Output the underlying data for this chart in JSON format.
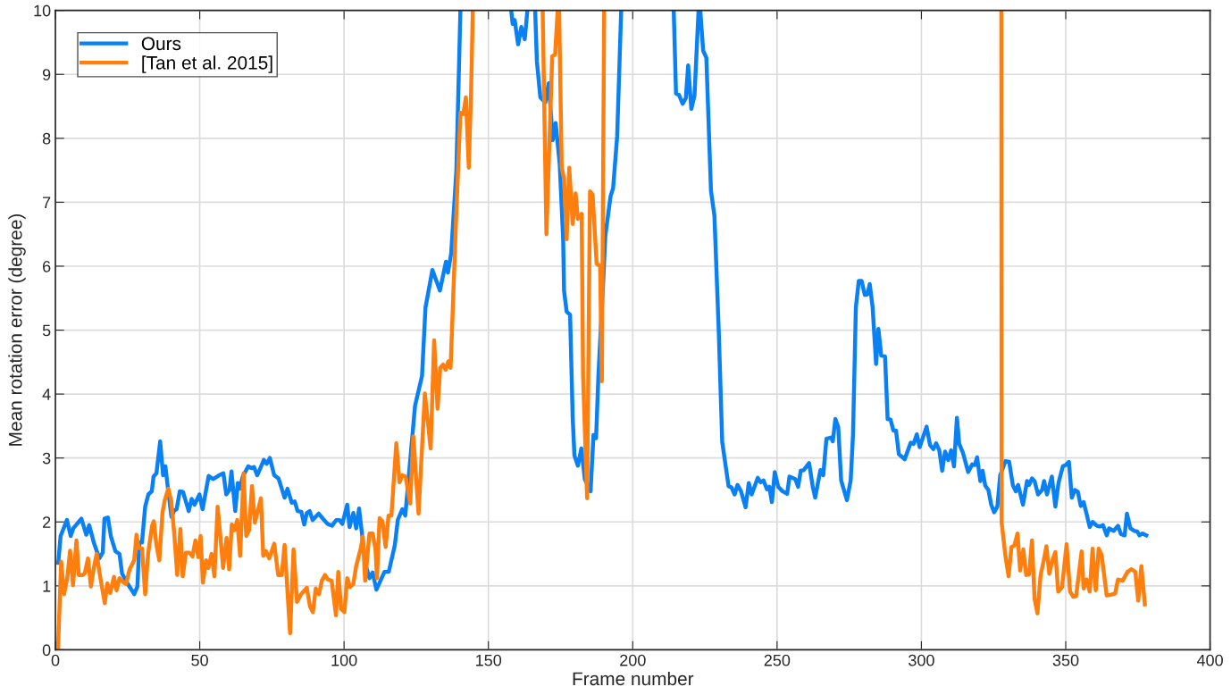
{
  "chart_data": {
    "type": "line",
    "xlabel": "Frame number",
    "ylabel": "Mean rotation error (degree)",
    "xlim": [
      0,
      400
    ],
    "xticks": [
      0,
      50,
      100,
      150,
      200,
      250,
      300,
      350,
      400
    ],
    "ylim": [
      0,
      10
    ],
    "yticks": [
      0,
      1,
      2,
      3,
      4,
      5,
      6,
      7,
      8,
      9,
      10
    ],
    "grid": true,
    "legend": "top left",
    "marker": "none",
    "line_style": "solid",
    "series": [
      {
        "name": "Ours",
        "color": "#0a80f5",
        "x": [
          1,
          1.8,
          4,
          5.3,
          6.2,
          9,
          10.7,
          11.7,
          13.3,
          15.2,
          16.4,
          17,
          18.2,
          19.2,
          20.8,
          22.2,
          23.1,
          25.1,
          27.3,
          28.4,
          29.1,
          30,
          31.1,
          32.2,
          33.4,
          34,
          35,
          36.3,
          37.3,
          38.1,
          39,
          40.2,
          41.2,
          42,
          43.1,
          44.2,
          46.2,
          47.2,
          48.2,
          49.9,
          51,
          53.1,
          54.6,
          56.7,
          58.2,
          59.2,
          60.3,
          61,
          62.3,
          63.2,
          63.9,
          64.9,
          66.8,
          68,
          68.8,
          69.9,
          71.1,
          72.2,
          73.2,
          74.3,
          75.8,
          77.3,
          79.4,
          80.4,
          81.9,
          82.9,
          83.9,
          85.2,
          86.2,
          87.1,
          88.1,
          89.1,
          91.2,
          92.7,
          94.3,
          95.8,
          97.3,
          98.4,
          99.4,
          101.1,
          101.9,
          103.2,
          104.2,
          105.2,
          106.3,
          107.3,
          108.8,
          109.9,
          111.2,
          112.5,
          114,
          115.5,
          117.6,
          118.6,
          120.2,
          121.2,
          124.6,
          127,
          128.2,
          130.6,
          133.2,
          135.3,
          136,
          137.1,
          138.9,
          140.3,
          150,
          157.9,
          158.4,
          159.1,
          160.3,
          161.4,
          162.6,
          163.5,
          165,
          166.2,
          166.8,
          168,
          169.7,
          170.9,
          172.3,
          173.3,
          174.7,
          175.9,
          176.2,
          177.1,
          178.3,
          179.2,
          179.8,
          181,
          182.2,
          183.4,
          185.4,
          186.4,
          187.3,
          188.1,
          189.9,
          190.5,
          192.3,
          193.2,
          194.6,
          196,
          205,
          214.2,
          215,
          216,
          217.3,
          218.4,
          219.2,
          220.3,
          221.4,
          222.8,
          223.4,
          224.4,
          225.5,
          227.1,
          228.3,
          229.8,
          231,
          233.2,
          234.2,
          235.3,
          236.3,
          237.5,
          239.1,
          240.2,
          241.2,
          243.3,
          244.3,
          245.3,
          246.5,
          247.3,
          248.2,
          249.2,
          250.4,
          251.9,
          253.5,
          254.3,
          256.3,
          257.3,
          258.2,
          259.2,
          261.1,
          262.4,
          263.2,
          265,
          266,
          267.1,
          268.7,
          269.3,
          270.2,
          271.2,
          272.2,
          274.2,
          275.5,
          276.3,
          277.3,
          278.3,
          279.3,
          280.4,
          281.3,
          282.1,
          283.1,
          284.3,
          285.1,
          286.1,
          287.4,
          288.3,
          289.3,
          290.3,
          291.2,
          292.2,
          294.2,
          296.3,
          297.3,
          298.4,
          299.4,
          301.8,
          303,
          304.1,
          305.1,
          306.2,
          307.2,
          308.2,
          309.3,
          310.3,
          311.3,
          312.3,
          313.1,
          314.4,
          316.2,
          317.6,
          318.5,
          319.3,
          320.4,
          321.2,
          322.1,
          323.2,
          324.2,
          325.2,
          326.3,
          327.3,
          329.1,
          330.4,
          331.7,
          332.7,
          333.5,
          335.2,
          336.6,
          337.3,
          338.3,
          339.2,
          340.4,
          341.8,
          342.5,
          343.5,
          345.2,
          346.4,
          347.5,
          349,
          350,
          351.1,
          352.1,
          353.2,
          354.2,
          355.2,
          356.2,
          357.2,
          358.3,
          359.3,
          360.8,
          361.9,
          362.9,
          364.2,
          365,
          366.6,
          368.1,
          369.1,
          370.4,
          371.2,
          372.4,
          373.8,
          374.8,
          375.5,
          376.6,
          377.9
        ],
        "values": [
          1.36,
          1.78,
          2.03,
          1.78,
          1.9,
          2.05,
          1.8,
          1.95,
          1.68,
          1.43,
          1.52,
          2.05,
          2.07,
          1.78,
          1.54,
          1.5,
          1.19,
          1.03,
          0.87,
          0.99,
          1.68,
          1.68,
          2.24,
          2.43,
          2.48,
          2.71,
          2.76,
          3.26,
          2.73,
          2.87,
          2.52,
          2.08,
          2.18,
          2.2,
          2.48,
          2.47,
          2.17,
          2.36,
          2.27,
          2.43,
          2.2,
          2.72,
          2.67,
          2.73,
          2.76,
          2.43,
          2.5,
          2.79,
          2.17,
          2.61,
          2.52,
          2.71,
          2.87,
          2.84,
          2.86,
          2.73,
          2.85,
          2.97,
          2.91,
          3.0,
          2.73,
          2.68,
          2.38,
          2.52,
          2.3,
          2.32,
          2.17,
          2.16,
          1.96,
          2.14,
          2.17,
          2.03,
          2.13,
          2.05,
          1.97,
          1.94,
          2.03,
          2.03,
          1.97,
          2.27,
          1.92,
          2.14,
          1.9,
          2.21,
          1.78,
          1.36,
          1.12,
          1.21,
          0.94,
          1.07,
          1.22,
          1.22,
          1.64,
          2.03,
          2.2,
          2.1,
          3.82,
          4.28,
          5.35,
          5.94,
          5.62,
          6.07,
          5.9,
          6.2,
          7.49,
          10,
          null,
          10,
          9.79,
          9.85,
          9.47,
          9.74,
          9.55,
          10,
          null,
          10,
          9.2,
          8.64,
          8.56,
          8.86,
          7.97,
          8.24,
          7.6,
          6.42,
          5.62,
          5.29,
          5.24,
          3.63,
          3.04,
          2.88,
          3.15,
          2.67,
          2.48,
          3.36,
          3.31,
          4.28,
          5.88,
          6.47,
          7.09,
          7.22,
          8.03,
          10,
          null,
          10,
          8.7,
          8.68,
          8.54,
          8.63,
          9.14,
          8.46,
          8.67,
          10,
          10,
          9.37,
          9.26,
          7.18,
          6.79,
          4.98,
          3.25,
          2.56,
          2.54,
          2.43,
          2.58,
          2.48,
          2.23,
          2.61,
          2.43,
          2.69,
          2.62,
          2.65,
          2.51,
          2.55,
          2.31,
          2.78,
          2.55,
          2.48,
          2.44,
          2.71,
          2.67,
          2.55,
          2.8,
          2.81,
          2.92,
          2.54,
          2.38,
          2.81,
          2.73,
          3.3,
          3.32,
          3.26,
          3.61,
          3.48,
          2.65,
          2.34,
          2.65,
          3.36,
          5.36,
          5.77,
          5.77,
          5.55,
          5.56,
          5.72,
          5.36,
          4.47,
          5.02,
          4.6,
          4.59,
          3.61,
          3.6,
          3.43,
          3.43,
          3.06,
          2.98,
          3.24,
          3.22,
          3.37,
          3.17,
          3.49,
          3.2,
          3.14,
          3.23,
          3.12,
          2.8,
          3.1,
          2.97,
          3.12,
          2.87,
          3.63,
          3.22,
          3.08,
          2.78,
          2.9,
          2.89,
          3.01,
          2.64,
          2.8,
          2.57,
          2.5,
          2.27,
          2.15,
          2.24,
          2.73,
          2.95,
          2.94,
          2.57,
          2.48,
          2.58,
          2.27,
          2.64,
          2.58,
          2.68,
          2.64,
          2.43,
          2.5,
          2.64,
          2.43,
          2.71,
          2.24,
          2.61,
          2.87,
          2.89,
          2.94,
          2.38,
          2.5,
          2.47,
          2.25,
          2.31,
          2.13,
          1.92,
          2.0,
          1.94,
          1.93,
          1.95,
          1.79,
          1.9,
          1.86,
          1.94,
          1.81,
          1.79,
          2.13,
          1.9,
          1.86,
          1.85,
          1.79,
          1.82,
          1.79
        ]
      },
      {
        "name": "[Tan et al. 2015]",
        "color": "#ff7f0e",
        "x": [
          0.9,
          2,
          3,
          4.1,
          5.1,
          6.1,
          7.3,
          8.1,
          9.4,
          10.2,
          11.3,
          12.3,
          13.3,
          14.3,
          15.6,
          17.1,
          18,
          19,
          20.3,
          21.2,
          22.2,
          23.7,
          24.5,
          25.7,
          27.3,
          28.1,
          28.8,
          30,
          31.1,
          32.1,
          33.5,
          34.1,
          35,
          36,
          37.1,
          37.9,
          39.1,
          40.1,
          41.2,
          42.2,
          43.3,
          44.1,
          45.2,
          46.4,
          47.5,
          48.5,
          49.5,
          50.3,
          51.1,
          52.2,
          53,
          54.1,
          55.1,
          56.2,
          57.1,
          58.1,
          59.3,
          60.2,
          61.1,
          62,
          63,
          64,
          65.2,
          66.1,
          67.1,
          68.1,
          69.1,
          70,
          71.2,
          72,
          73,
          74.1,
          75.8,
          77.2,
          78.4,
          79.4,
          81.3,
          82.5,
          83.7,
          85.1,
          87.1,
          88.2,
          89.2,
          90.2,
          91.3,
          92.3,
          93.4,
          94.4,
          95.7,
          97.2,
          98,
          99,
          100.1,
          101.1,
          102.1,
          103.2,
          104.2,
          105.8,
          106.5,
          107.3,
          108.8,
          109.9,
          110.9,
          111.4,
          112.3,
          113.3,
          114.4,
          115.4,
          116.4,
          118.1,
          119.2,
          120.2,
          121.3,
          122.9,
          124,
          125.8,
          128,
          130,
          131.2,
          132.4,
          133.3,
          134.3,
          135.2,
          136.1,
          136.9,
          138.9,
          140.3,
          141.3,
          142.2,
          143.2,
          144,
          144.6,
          155,
          168.8,
          170.1,
          172.1,
          173.1,
          174,
          174.5,
          175.4,
          176.2,
          177.1,
          178,
          179.2,
          180.2,
          181,
          182.3,
          182.8,
          184.2,
          185.2,
          186.1,
          187.5,
          188.7,
          189.3,
          190.1,
          250,
          327.7,
          327.8,
          329.1,
          330.2,
          331.2,
          332.2,
          333.3,
          334.2,
          335.3,
          336.3,
          337.3,
          338.3,
          339.2,
          340.2,
          341.3,
          342.3,
          343.3,
          344.3,
          345.4,
          346.4,
          347.4,
          348.7,
          350.3,
          351.5,
          352.6,
          353.6,
          355.5,
          356.2,
          357.2,
          358.3,
          359.3,
          360.4,
          361.4,
          362.4,
          364.2,
          365.5,
          367.1,
          368.1,
          369.7,
          371.4,
          372.8,
          374.1,
          375.1,
          376.2,
          377.4
        ],
        "values": [
          0,
          1.38,
          0.87,
          1.12,
          1.55,
          1.01,
          1.71,
          1.17,
          1.17,
          1.2,
          1.43,
          0.99,
          1.28,
          1.5,
          1.12,
          0.73,
          1.04,
          0.89,
          1.14,
          0.93,
          1.12,
          1.05,
          1.03,
          1.26,
          1.4,
          1.8,
          1.59,
          1.59,
          0.87,
          1.5,
          1.94,
          2.01,
          1.64,
          1.4,
          2.15,
          2.34,
          2.52,
          2.34,
          1.8,
          1.17,
          1.89,
          1.15,
          1.52,
          1.52,
          1.46,
          1.71,
          1.45,
          1.78,
          1.05,
          1.4,
          1.28,
          1.5,
          1.15,
          2.24,
          1.8,
          1.28,
          1.75,
          1.26,
          1.96,
          1.87,
          2.03,
          1.47,
          2.76,
          1.78,
          1.87,
          2.56,
          1.99,
          2.15,
          2.37,
          1.47,
          1.54,
          1.43,
          1.66,
          1.17,
          1.17,
          1.64,
          0.26,
          1.57,
          0.75,
          0.87,
          0.97,
          0.68,
          0.59,
          0.96,
          0.87,
          1.08,
          1.17,
          1.1,
          1.08,
          0.54,
          1.22,
          0.64,
          0.59,
          1.12,
          0.98,
          1.03,
          1.31,
          1.59,
          1.77,
          1.08,
          1.82,
          1.82,
          1.57,
          1.12,
          2.06,
          2.01,
          1.61,
          2.1,
          2.1,
          3.23,
          2.62,
          2.73,
          2.71,
          2.29,
          3.34,
          2.13,
          4.01,
          3.15,
          4.84,
          3.77,
          4.41,
          4.46,
          4.38,
          4.51,
          4.41,
          6.85,
          8.4,
          8.38,
          8.64,
          7.54,
          8.72,
          10,
          null,
          10,
          6.5,
          9.28,
          9.31,
          10,
          10,
          7.54,
          7.37,
          6.42,
          7.54,
          6.66,
          7.14,
          6.74,
          6.82,
          4.28,
          2.37,
          7.17,
          7.12,
          6.04,
          6.0,
          4.2,
          10,
          null,
          10,
          1.99,
          1.47,
          1.15,
          1.61,
          1.63,
          1.82,
          1.24,
          1.57,
          1.17,
          1.18,
          1.71,
          0.8,
          0.57,
          1.17,
          1.38,
          1.62,
          1.19,
          1.4,
          1.53,
          0.91,
          0.98,
          1.65,
          0.91,
          0.83,
          0.84,
          1.54,
          0.96,
          1.1,
          0.91,
          1.58,
          0.93,
          1.58,
          1.49,
          0.85,
          0.86,
          0.88,
          1.1,
          1.08,
          1.22,
          1.26,
          1.22,
          0.77,
          1.31,
          0.71
        ]
      }
    ]
  }
}
